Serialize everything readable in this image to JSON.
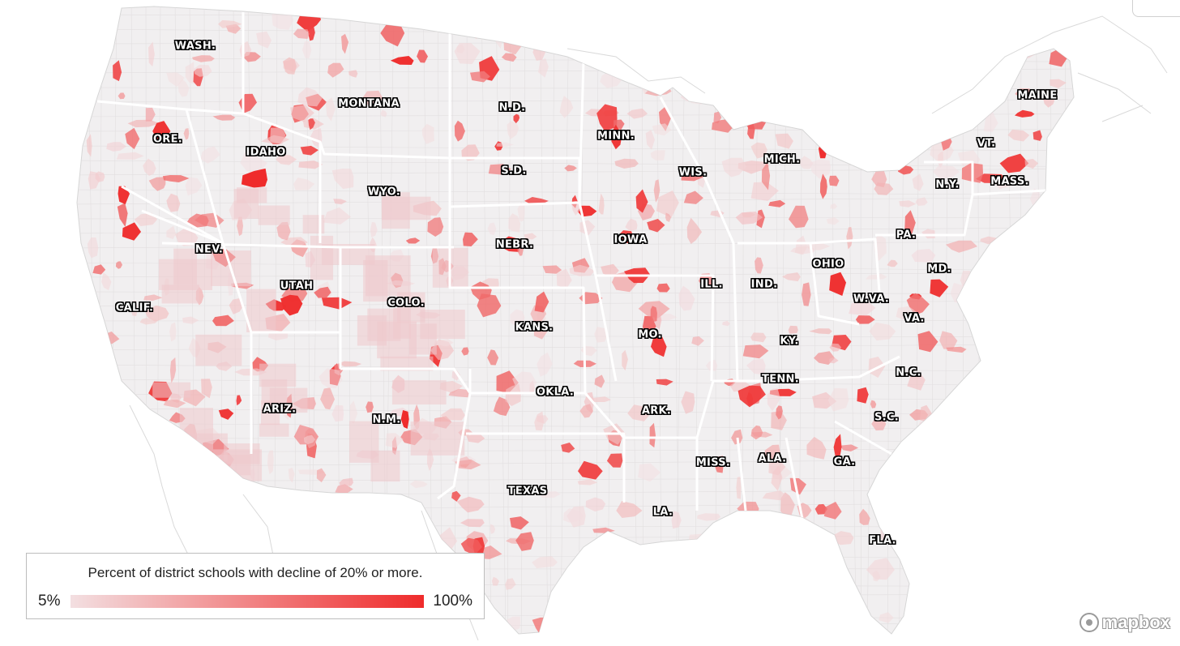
{
  "map": {
    "base_color": "#f1eff0",
    "border_color": "#ffffff",
    "scale_low_color": "#f3dfe1",
    "scale_high_color": "#ef2b2b"
  },
  "legend": {
    "title": "Percent of district schools with decline of 20% or more.",
    "min_label": "5%",
    "max_label": "100%"
  },
  "states": {
    "wa": "WASH.",
    "mt": "MONTANA",
    "nd": "N.D.",
    "mn": "MINN.",
    "me": "MAINE",
    "or": "ORE.",
    "id": "IDAHO",
    "sd": "S.D.",
    "wi": "WIS.",
    "mi": "MICH.",
    "vt": "VT.",
    "wy": "WYO.",
    "ny": "N.Y.",
    "ma": "MASS.",
    "nv": "NEV.",
    "ne": "NEBR.",
    "ia": "IOWA",
    "pa": "PA.",
    "ut": "UTAH",
    "oh": "OHIO",
    "md": "MD.",
    "co": "COLO.",
    "il": "ILL.",
    "in": "IND.",
    "ca": "CALIF.",
    "wv": "W.VA.",
    "ks": "KANS.",
    "va": "VA.",
    "mo": "MO.",
    "ky": "KY.",
    "tn": "TENN.",
    "nc": "N.C.",
    "ok": "OKLA.",
    "az": "ARIZ.",
    "nm": "N.M.",
    "ar": "ARK.",
    "sc": "S.C.",
    "ms": "MISS.",
    "al": "ALA.",
    "ga": "GA.",
    "tx": "TEXAS",
    "la": "LA.",
    "fl": "FLA."
  },
  "attribution": {
    "text": "mapbox",
    "icon": "mapbox-logo-icon"
  }
}
